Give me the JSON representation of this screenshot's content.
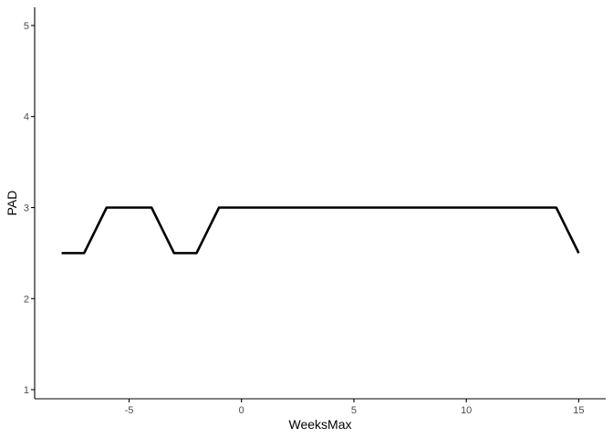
{
  "chart_data": {
    "type": "line",
    "title": "",
    "xlabel": "WeeksMax",
    "ylabel": "PAD",
    "xlim": [
      -9.2,
      16.2
    ],
    "ylim": [
      0.9,
      5.2
    ],
    "xticks": [
      -5,
      0,
      5,
      10,
      15
    ],
    "xtick_labels": [
      "-5",
      "0",
      "5",
      "10",
      "15"
    ],
    "yticks": [
      1,
      2,
      3,
      4,
      5
    ],
    "ytick_labels": [
      "1",
      "2",
      "3",
      "4",
      "5"
    ],
    "grid": false,
    "series": [
      {
        "color": "#000000",
        "x": [
          -8,
          -7,
          -6,
          -5,
          -4,
          -3,
          -2,
          -1,
          0,
          1,
          2,
          3,
          4,
          5,
          6,
          7,
          8,
          9,
          10,
          11,
          12,
          13,
          14,
          15
        ],
        "y": [
          2.5,
          2.5,
          3,
          3,
          3,
          2.5,
          2.5,
          3,
          3,
          3,
          3,
          3,
          3,
          3,
          3,
          3,
          3,
          3,
          3,
          3,
          3,
          3,
          3,
          2.5
        ]
      }
    ]
  }
}
